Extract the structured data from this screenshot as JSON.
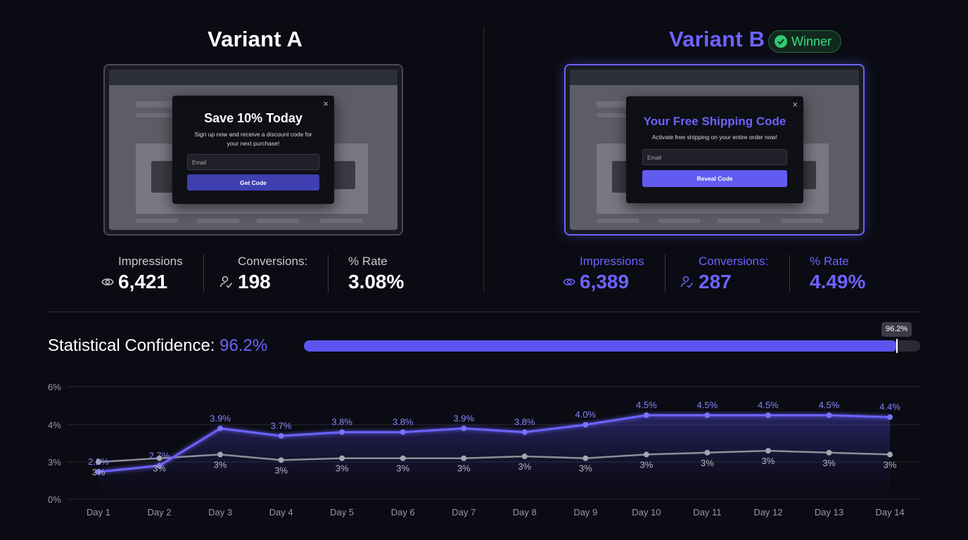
{
  "variant_a": {
    "title": "Variant A",
    "popup": {
      "close": "×",
      "headline": "Save 10% Today",
      "subtext": "Sign up now and receive a discount code for your next purchase!",
      "email_placeholder": "Email",
      "button": "Get Code"
    },
    "stats": {
      "impressions_label": "Impressions",
      "impressions": "6,421",
      "conversions_label": "Conversions:",
      "conversions": "198",
      "rate_label": "% Rate",
      "rate": "3.08%"
    }
  },
  "variant_b": {
    "title": "Variant B",
    "badge": "Winner",
    "popup": {
      "close": "×",
      "headline": "Your Free Shipping Code",
      "subtext": "Activate free shipping on your entire order now!",
      "email_placeholder": "Email",
      "button": "Reveal Code"
    },
    "stats": {
      "impressions_label": "Impressions",
      "impressions": "6,389",
      "conversions_label": "Conversions:",
      "conversions": "287",
      "rate_label": "% Rate",
      "rate": "4.49%"
    }
  },
  "confidence": {
    "label": "Statistical Confidence:",
    "value_text": "96.2%",
    "value": 96.2,
    "tooltip": "96.2%"
  },
  "colors": {
    "accent": "#6c63ff",
    "winner_green": "#3ddc84",
    "series_a": "#8e8e99",
    "background": "#0b0b13"
  },
  "chart_data": {
    "type": "line",
    "categories": [
      "Day 1",
      "Day 2",
      "Day 3",
      "Day 4",
      "Day 5",
      "Day 6",
      "Day 7",
      "Day 8",
      "Day 9",
      "Day 10",
      "Day 11",
      "Day 12",
      "Day 13",
      "Day 14"
    ],
    "y_ticks": [
      "0%",
      "3%",
      "4%",
      "6%"
    ],
    "ylim": [
      0,
      6
    ],
    "grid": true,
    "series": [
      {
        "color": "#6c63ff",
        "values": [
          2.2,
          2.7,
          3.9,
          3.7,
          3.8,
          3.8,
          3.9,
          3.8,
          4.0,
          4.5,
          4.5,
          4.5,
          4.5,
          4.4
        ],
        "labels": [
          "2.2%",
          "2.7%",
          "3.9%",
          "3.7%",
          "3.8%",
          "3.8%",
          "3.9%",
          "3.8%",
          "4.0%",
          "4.5%",
          "4.5%",
          "4.5%",
          "4.5%",
          "4.4%"
        ]
      },
      {
        "color": "#8e8e99",
        "values": [
          3.0,
          3.1,
          3.2,
          3.05,
          3.1,
          3.1,
          3.1,
          3.15,
          3.1,
          3.2,
          3.25,
          3.3,
          3.25,
          3.2
        ],
        "labels": [
          "3%",
          "3%",
          "3%",
          "3%",
          "3%",
          "3%",
          "3%",
          "3%",
          "3%",
          "3%",
          "3%",
          "3%",
          "3%",
          "3%"
        ]
      }
    ]
  }
}
